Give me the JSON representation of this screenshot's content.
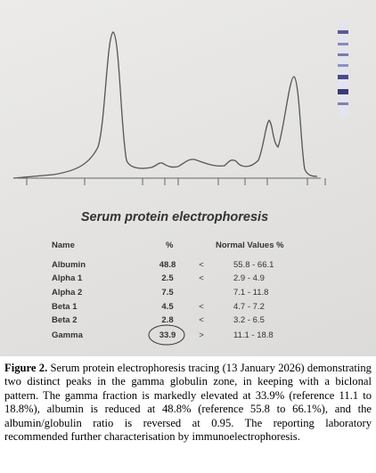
{
  "heading": "Serum protein electrophoresis",
  "table": {
    "columns": [
      "Name",
      "%",
      "Normal Values %"
    ],
    "rows": [
      {
        "name": "Albumin",
        "percent": 48.8,
        "flag": "<",
        "normal": "55.8 - 66.1"
      },
      {
        "name": "Alpha 1",
        "percent": 2.5,
        "flag": "<",
        "normal": "2.9 - 4.9"
      },
      {
        "name": "Alpha 2",
        "percent": 7.5,
        "normal": "7.1 - 11.8"
      },
      {
        "name": "Beta 1",
        "percent": 4.5,
        "flag": "<",
        "normal": "4.7 - 7.2"
      },
      {
        "name": "Beta 2",
        "percent": 2.8,
        "flag": "<",
        "normal": "3.2 - 6.5"
      },
      {
        "name": "Gamma",
        "percent": 33.9,
        "flag": ">",
        "normal": "11.1 - 18.8"
      }
    ]
  },
  "caption": {
    "label": "Figure 2.",
    "text": "Serum protein electrophoresis tracing (13 January 2026) demonstrating two distinct peaks in the gamma globulin zone, in keeping with a biclonal pattern. The gamma fraction is markedly elevated at 33.9% (reference 11.1 to 18.8%), albumin is reduced at 48.8% (reference 55.8 to 66.1%), and the albumin/globulin ratio is reversed at 0.95. The reporting laboratory recommended further characterisation by immunoelectrophoresis."
  }
}
